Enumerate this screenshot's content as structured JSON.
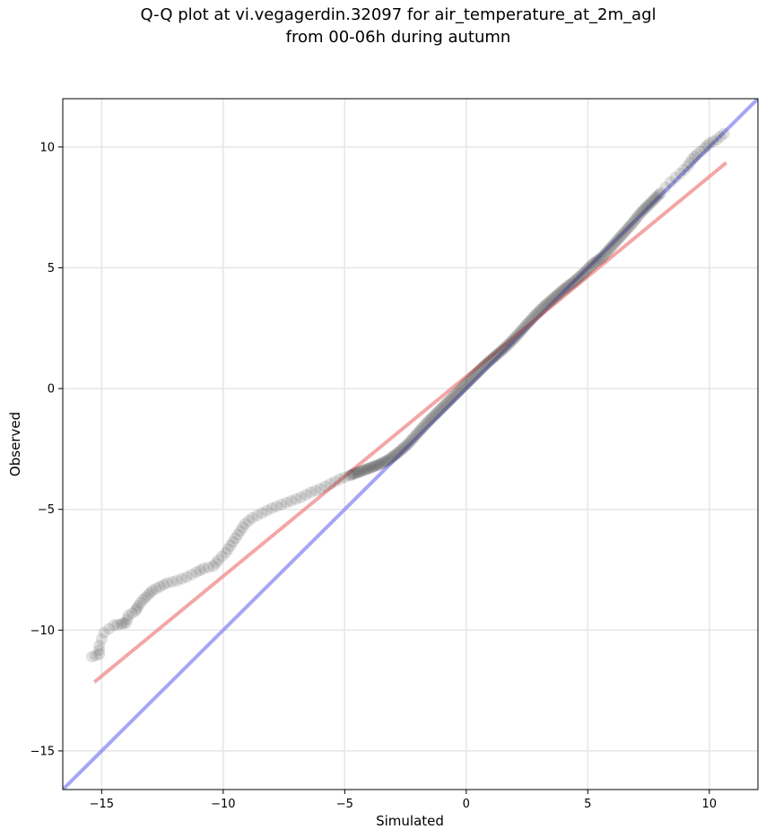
{
  "chart_data": {
    "type": "scatter",
    "title": [
      "Q-Q plot at vi.vegagerdin.32097 for air_temperature_at_2m_agl",
      "from 00-06h during autumn"
    ],
    "xlabel": "Simulated",
    "ylabel": "Observed",
    "xlim": [
      -16.6,
      12
    ],
    "ylim": [
      -16.6,
      12
    ],
    "xticks": [
      -15,
      -10,
      -5,
      0,
      5,
      10
    ],
    "yticks": [
      -15,
      -10,
      -5,
      0,
      5,
      10
    ],
    "xtick_labels": [
      "−15",
      "−10",
      "−5",
      "0",
      "5",
      "10"
    ],
    "ytick_labels": [
      "−15",
      "−10",
      "−5",
      "0",
      "5",
      "10"
    ],
    "grid": true,
    "colors": {
      "points": "#333333",
      "fit_line": "#f08080",
      "identity_line": "#8080f0"
    },
    "lines": [
      {
        "kind": "identity",
        "x": [
          -16.6,
          12
        ],
        "y": [
          -16.6,
          12
        ]
      },
      {
        "kind": "fit",
        "x": [
          -15.3,
          10.7
        ],
        "y": [
          -12.15,
          9.35
        ]
      }
    ],
    "quantiles": [
      [
        -15.4,
        -11.1
      ],
      [
        -15.1,
        -11.0
      ],
      [
        -15.1,
        -10.65
      ],
      [
        -14.9,
        -10.1
      ],
      [
        -14.5,
        -9.8
      ],
      [
        -14.2,
        -9.75
      ],
      [
        -14.0,
        -9.7
      ],
      [
        -13.9,
        -9.4
      ],
      [
        -13.6,
        -9.2
      ],
      [
        -13.5,
        -9.0
      ],
      [
        -13.3,
        -8.75
      ],
      [
        -13.1,
        -8.55
      ],
      [
        -12.9,
        -8.35
      ],
      [
        -12.6,
        -8.2
      ],
      [
        -12.3,
        -8.05
      ],
      [
        -11.9,
        -7.95
      ],
      [
        -11.5,
        -7.8
      ],
      [
        -11.1,
        -7.6
      ],
      [
        -10.8,
        -7.45
      ],
      [
        -10.4,
        -7.35
      ],
      [
        -10.2,
        -7.1
      ],
      [
        -9.9,
        -6.8
      ],
      [
        -9.7,
        -6.5
      ],
      [
        -9.5,
        -6.2
      ],
      [
        -9.3,
        -5.9
      ],
      [
        -9.1,
        -5.6
      ],
      [
        -8.8,
        -5.35
      ],
      [
        -8.4,
        -5.15
      ],
      [
        -8.0,
        -4.95
      ],
      [
        -7.6,
        -4.8
      ],
      [
        -7.2,
        -4.65
      ],
      [
        -6.8,
        -4.5
      ],
      [
        -6.4,
        -4.3
      ],
      [
        -6.0,
        -4.15
      ],
      [
        -5.6,
        -3.95
      ],
      [
        -5.2,
        -3.75
      ],
      [
        -4.8,
        -3.6
      ],
      [
        -4.4,
        -3.45
      ],
      [
        -4.0,
        -3.3
      ],
      [
        -3.6,
        -3.15
      ],
      [
        -3.2,
        -2.95
      ],
      [
        -2.8,
        -2.65
      ],
      [
        -2.4,
        -2.3
      ],
      [
        -2.0,
        -1.85
      ],
      [
        -1.6,
        -1.4
      ],
      [
        -1.2,
        -1.0
      ],
      [
        -0.8,
        -0.6
      ],
      [
        -0.4,
        -0.2
      ],
      [
        0.0,
        0.2
      ],
      [
        0.4,
        0.6
      ],
      [
        0.8,
        1.0
      ],
      [
        1.2,
        1.35
      ],
      [
        1.6,
        1.7
      ],
      [
        2.0,
        2.1
      ],
      [
        2.4,
        2.55
      ],
      [
        2.8,
        3.0
      ],
      [
        3.2,
        3.4
      ],
      [
        3.6,
        3.75
      ],
      [
        4.0,
        4.1
      ],
      [
        4.4,
        4.4
      ],
      [
        4.8,
        4.75
      ],
      [
        5.2,
        5.15
      ],
      [
        5.6,
        5.45
      ],
      [
        6.0,
        5.9
      ],
      [
        6.4,
        6.35
      ],
      [
        6.8,
        6.8
      ],
      [
        7.2,
        7.3
      ],
      [
        7.6,
        7.7
      ],
      [
        8.0,
        8.1
      ],
      [
        8.4,
        8.55
      ],
      [
        8.8,
        8.9
      ],
      [
        9.1,
        9.2
      ],
      [
        9.3,
        9.5
      ],
      [
        9.5,
        9.7
      ],
      [
        9.8,
        9.95
      ],
      [
        10.0,
        10.15
      ],
      [
        10.3,
        10.3
      ],
      [
        10.6,
        10.55
      ]
    ]
  }
}
